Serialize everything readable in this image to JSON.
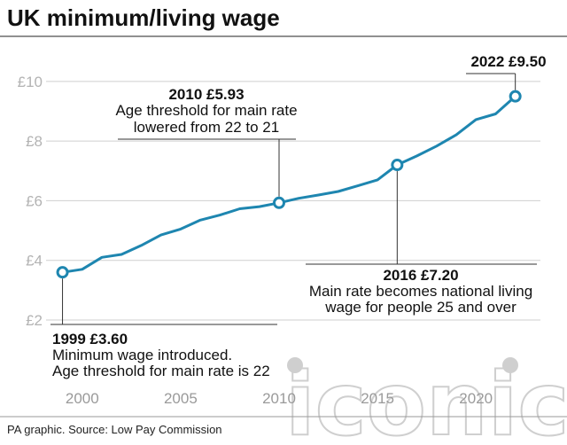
{
  "chart_data": {
    "type": "line",
    "title": "UK minimum/living wage",
    "xlabel": "",
    "ylabel": "",
    "xlim": [
      1998.3,
      2023.5
    ],
    "ylim": [
      2,
      10.5
    ],
    "yticks": [
      {
        "value": 2,
        "label": "£2"
      },
      {
        "value": 4,
        "label": "£4"
      },
      {
        "value": 6,
        "label": "£6"
      },
      {
        "value": 8,
        "label": "£8"
      },
      {
        "value": 10,
        "label": "£10"
      }
    ],
    "xticks": [
      {
        "value": 2000,
        "label": "2000"
      },
      {
        "value": 2005,
        "label": "2005"
      },
      {
        "value": 2010,
        "label": "2010"
      },
      {
        "value": 2015,
        "label": "2015"
      },
      {
        "value": 2020,
        "label": "2020"
      }
    ],
    "grid": true,
    "series": [
      {
        "color": "#1e86b0",
        "x": [
          1999,
          2000,
          2001,
          2002,
          2003,
          2004,
          2005,
          2006,
          2007,
          2008,
          2009,
          2010,
          2011,
          2012,
          2013,
          2014,
          2015,
          2016,
          2017,
          2018,
          2019,
          2020,
          2021,
          2022
        ],
        "y": [
          3.6,
          3.7,
          4.1,
          4.2,
          4.5,
          4.85,
          5.05,
          5.35,
          5.52,
          5.73,
          5.8,
          5.93,
          6.08,
          6.19,
          6.31,
          6.5,
          6.7,
          7.2,
          7.5,
          7.83,
          8.21,
          8.72,
          8.91,
          9.5
        ]
      }
    ],
    "annotations": [
      {
        "x": 1999,
        "y": 3.6,
        "head": "1999 £3.60",
        "lines": [
          "Minimum wage introduced.",
          "Age threshold for main rate is 22"
        ]
      },
      {
        "x": 2010,
        "y": 5.93,
        "head": "2010 £5.93",
        "lines": [
          "Age threshold for main rate",
          "lowered from 22 to 21"
        ]
      },
      {
        "x": 2016,
        "y": 7.2,
        "head": "2016 £7.20",
        "lines": [
          "Main rate becomes national living",
          "wage for people 25 and over"
        ]
      },
      {
        "x": 2022,
        "y": 9.5,
        "head": "2022 £9.50",
        "lines": []
      }
    ]
  },
  "source": "PA graphic. Source: Low Pay Commission",
  "watermark": "iconic",
  "colors": {
    "line": "#1e86b0",
    "grid": "#cfcfcf",
    "text": "#111111",
    "tick": "#b3b3b3"
  }
}
